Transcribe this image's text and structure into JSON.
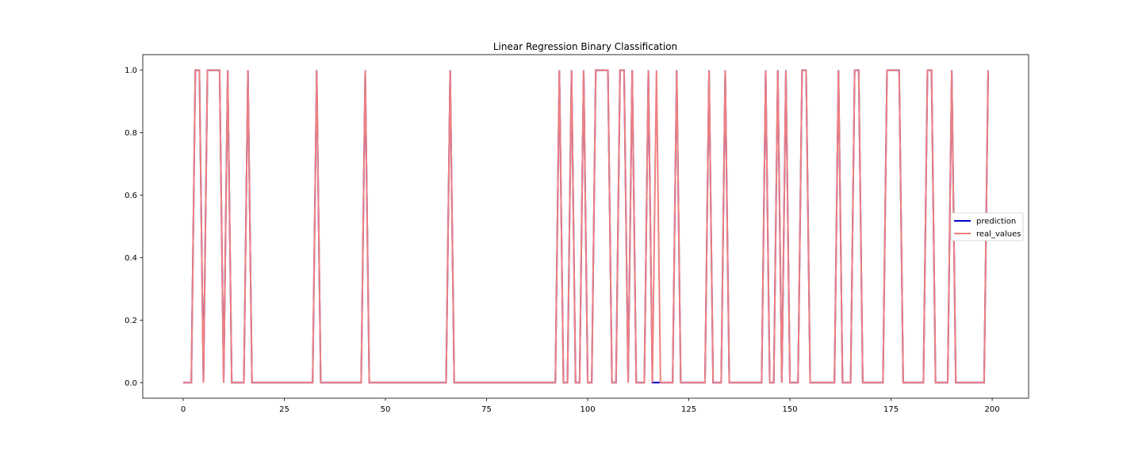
{
  "chart_data": {
    "type": "line",
    "title": "Linear Regression Binary Classification",
    "xlabel": "",
    "ylabel": "",
    "xlim": [
      -10,
      209
    ],
    "ylim": [
      -0.05,
      1.05
    ],
    "xticks": [
      0,
      25,
      50,
      75,
      100,
      125,
      150,
      175,
      200
    ],
    "yticks": [
      0.0,
      0.2,
      0.4,
      0.6,
      0.8,
      1.0
    ],
    "xtick_labels": [
      "0",
      "25",
      "50",
      "75",
      "100",
      "125",
      "150",
      "175",
      "200"
    ],
    "ytick_labels": [
      "0.0",
      "0.2",
      "0.4",
      "0.6",
      "0.8",
      "1.0"
    ],
    "grid": false,
    "legend_position": "right",
    "x": [
      0,
      1,
      2,
      3,
      4,
      5,
      6,
      7,
      8,
      9,
      10,
      11,
      12,
      13,
      14,
      15,
      16,
      17,
      18,
      19,
      20,
      21,
      22,
      23,
      24,
      25,
      26,
      27,
      28,
      29,
      30,
      31,
      32,
      33,
      34,
      35,
      36,
      37,
      38,
      39,
      40,
      41,
      42,
      43,
      44,
      45,
      46,
      47,
      48,
      49,
      50,
      51,
      52,
      53,
      54,
      55,
      56,
      57,
      58,
      59,
      60,
      61,
      62,
      63,
      64,
      65,
      66,
      67,
      68,
      69,
      70,
      71,
      72,
      73,
      74,
      75,
      76,
      77,
      78,
      79,
      80,
      81,
      82,
      83,
      84,
      85,
      86,
      87,
      88,
      89,
      90,
      91,
      92,
      93,
      94,
      95,
      96,
      97,
      98,
      99,
      100,
      101,
      102,
      103,
      104,
      105,
      106,
      107,
      108,
      109,
      110,
      111,
      112,
      113,
      114,
      115,
      116,
      117,
      118,
      119,
      120,
      121,
      122,
      123,
      124,
      125,
      126,
      127,
      128,
      129,
      130,
      131,
      132,
      133,
      134,
      135,
      136,
      137,
      138,
      139,
      140,
      141,
      142,
      143,
      144,
      145,
      146,
      147,
      148,
      149,
      150,
      151,
      152,
      153,
      154,
      155,
      156,
      157,
      158,
      159,
      160,
      161,
      162,
      163,
      164,
      165,
      166,
      167,
      168,
      169,
      170,
      171,
      172,
      173,
      174,
      175,
      176,
      177,
      178,
      179,
      180,
      181,
      182,
      183,
      184,
      185,
      186,
      187,
      188,
      189,
      190,
      191,
      192,
      193,
      194,
      195,
      196,
      197,
      198,
      199
    ],
    "series": [
      {
        "name": "prediction",
        "color": "#0000cd",
        "values": [
          0,
          0,
          0,
          1,
          1,
          0,
          1,
          1,
          1,
          1,
          0,
          1,
          0,
          0,
          0,
          0,
          1,
          0,
          0,
          0,
          0,
          0,
          0,
          0,
          0,
          0,
          0,
          0,
          0,
          0,
          0,
          0,
          0,
          1,
          0,
          0,
          0,
          0,
          0,
          0,
          0,
          0,
          0,
          0,
          0,
          1,
          0,
          0,
          0,
          0,
          0,
          0,
          0,
          0,
          0,
          0,
          0,
          0,
          0,
          0,
          0,
          0,
          0,
          0,
          0,
          0,
          1,
          0,
          0,
          0,
          0,
          0,
          0,
          0,
          0,
          0,
          0,
          0,
          0,
          0,
          0,
          0,
          0,
          0,
          0,
          0,
          0,
          0,
          0,
          0,
          0,
          0,
          0,
          1,
          0,
          0,
          1,
          0,
          0,
          1,
          0,
          0,
          1,
          1,
          1,
          1,
          0,
          0,
          1,
          1,
          0,
          1,
          0,
          0,
          0,
          1,
          0,
          0,
          0,
          0,
          0,
          0,
          1,
          0,
          0,
          0,
          0,
          0,
          0,
          0,
          1,
          0,
          0,
          0,
          1,
          0,
          0,
          0,
          0,
          0,
          0,
          0,
          0,
          0,
          1,
          0,
          0,
          1,
          0,
          1,
          0,
          0,
          0,
          1,
          1,
          0,
          0,
          0,
          0,
          0,
          0,
          0,
          1,
          0,
          0,
          0,
          1,
          1,
          0,
          0,
          0,
          0,
          0,
          0,
          1,
          1,
          1,
          1,
          0,
          0,
          0,
          0,
          0,
          0,
          1,
          1,
          0,
          0,
          0,
          0,
          1,
          0,
          0,
          0,
          0,
          0,
          0,
          0,
          0,
          1
        ]
      },
      {
        "name": "real_values",
        "color": "#f08080",
        "values": [
          0,
          0,
          0,
          1,
          1,
          0,
          1,
          1,
          1,
          1,
          0,
          1,
          0,
          0,
          0,
          0,
          1,
          0,
          0,
          0,
          0,
          0,
          0,
          0,
          0,
          0,
          0,
          0,
          0,
          0,
          0,
          0,
          0,
          1,
          0,
          0,
          0,
          0,
          0,
          0,
          0,
          0,
          0,
          0,
          0,
          1,
          0,
          0,
          0,
          0,
          0,
          0,
          0,
          0,
          0,
          0,
          0,
          0,
          0,
          0,
          0,
          0,
          0,
          0,
          0,
          0,
          1,
          0,
          0,
          0,
          0,
          0,
          0,
          0,
          0,
          0,
          0,
          0,
          0,
          0,
          0,
          0,
          0,
          0,
          0,
          0,
          0,
          0,
          0,
          0,
          0,
          0,
          0,
          1,
          0,
          0,
          1,
          0,
          0,
          1,
          0,
          0,
          1,
          1,
          1,
          1,
          0,
          0,
          1,
          1,
          0,
          1,
          0,
          0,
          0,
          1,
          0,
          1,
          0,
          0,
          0,
          0,
          1,
          0,
          0,
          0,
          0,
          0,
          0,
          0,
          1,
          0,
          0,
          0,
          1,
          0,
          0,
          0,
          0,
          0,
          0,
          0,
          0,
          0,
          1,
          0,
          0,
          1,
          0,
          1,
          0,
          0,
          0,
          1,
          1,
          0,
          0,
          0,
          0,
          0,
          0,
          0,
          1,
          0,
          0,
          0,
          1,
          1,
          0,
          0,
          0,
          0,
          0,
          0,
          1,
          1,
          1,
          1,
          0,
          0,
          0,
          0,
          0,
          0,
          1,
          1,
          0,
          0,
          0,
          0,
          1,
          0,
          0,
          0,
          0,
          0,
          0,
          0,
          0,
          1
        ]
      }
    ]
  }
}
